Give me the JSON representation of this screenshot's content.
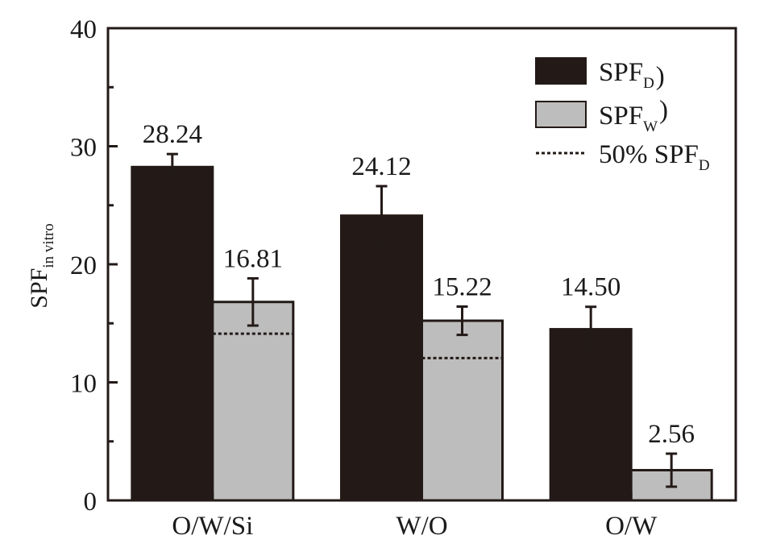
{
  "chart_data": {
    "type": "bar",
    "categories": [
      "O/W/Si",
      "W/O",
      "O/W"
    ],
    "series": [
      {
        "name": "SPF_D",
        "legend_main": "SPF",
        "legend_sub": "D",
        "legend_suffix": ")",
        "color": "#231a18",
        "values": [
          28.24,
          24.12,
          14.5
        ],
        "errors": [
          1.1,
          2.5,
          1.9
        ],
        "labels": [
          "28.24",
          "24.12",
          "14.50"
        ]
      },
      {
        "name": "SPF_W",
        "legend_main": "SPF",
        "legend_sub": "W",
        "legend_suffix": ")",
        "color": "#bdbdbd",
        "values": [
          16.81,
          15.22,
          2.56
        ],
        "errors": [
          2.0,
          1.2,
          1.4
        ],
        "labels": [
          "16.81",
          "15.22",
          "2.56"
        ]
      }
    ],
    "reference_line": {
      "name": "50% SPF_D",
      "legend_main": "50% SPF",
      "legend_sub": "D",
      "style": "dotted",
      "values": [
        14.12,
        12.06,
        null
      ]
    },
    "ylabel_main": "SPF",
    "ylabel_sub": "in vitro",
    "xlabel": "",
    "ylim": [
      0,
      40
    ],
    "yticks": [
      "0",
      "10",
      "20",
      "30",
      "40"
    ],
    "legend_position": "top-right",
    "grid": false
  }
}
